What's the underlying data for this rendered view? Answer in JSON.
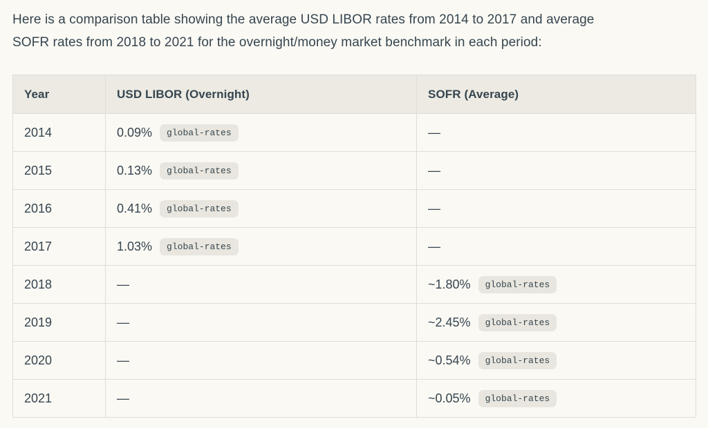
{
  "intro": "Here is a comparison table showing the average USD LIBOR rates from 2014 to 2017 and average\nSOFR rates from 2018 to 2021 for the overnight/money market benchmark in each period:",
  "table": {
    "columns": [
      "Year",
      "USD LIBOR (Overnight)",
      "SOFR (Average)"
    ],
    "rows": [
      {
        "cells": [
          {
            "text": "2014"
          },
          {
            "text": "0.09%",
            "badge": "global-rates"
          },
          {
            "text": "—"
          }
        ]
      },
      {
        "cells": [
          {
            "text": "2015"
          },
          {
            "text": "0.13%",
            "badge": "global-rates"
          },
          {
            "text": "—"
          }
        ]
      },
      {
        "cells": [
          {
            "text": "2016"
          },
          {
            "text": "0.41%",
            "badge": "global-rates"
          },
          {
            "text": "—"
          }
        ]
      },
      {
        "cells": [
          {
            "text": "2017"
          },
          {
            "text": "1.03%",
            "badge": "global-rates"
          },
          {
            "text": "—"
          }
        ]
      },
      {
        "cells": [
          {
            "text": "2018"
          },
          {
            "text": "—"
          },
          {
            "text": "~1.80%",
            "badge": "global-rates"
          }
        ]
      },
      {
        "cells": [
          {
            "text": "2019"
          },
          {
            "text": "—"
          },
          {
            "text": "~2.45%",
            "badge": "global-rates"
          }
        ]
      },
      {
        "cells": [
          {
            "text": "2020"
          },
          {
            "text": "—"
          },
          {
            "text": "~0.54%",
            "badge": "global-rates"
          }
        ]
      },
      {
        "cells": [
          {
            "text": "2021"
          },
          {
            "text": "—"
          },
          {
            "text": "~0.05%",
            "badge": "global-rates"
          }
        ]
      }
    ]
  },
  "colors": {
    "page_background": "#FAF9F4",
    "text": "#36454F",
    "header_background": "#ECEAE2",
    "border": "#DFDDD5",
    "badge_background": "#E8E6DE"
  }
}
